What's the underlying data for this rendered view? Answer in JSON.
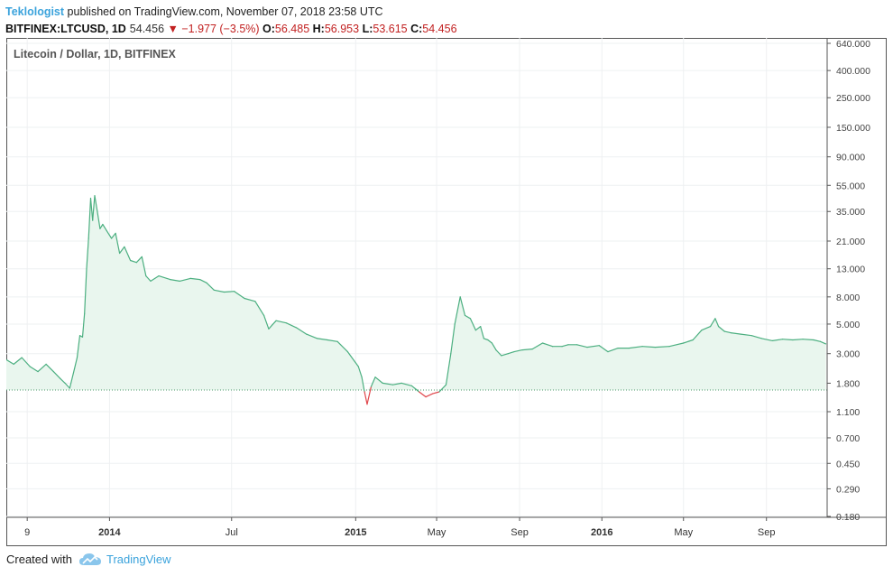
{
  "header": {
    "author": "Teklologist",
    "published_text": " published on TradingView.com, November 07, 2018 23:58 UTC",
    "symbol": "BITFINEX:LTCUSD, 1D",
    "last": "54.456",
    "change": "−1.977 (−3.5%)",
    "o_label": "O:",
    "o_value": "56.485",
    "h_label": "H:",
    "h_value": "56.953",
    "l_label": "L:",
    "l_value": "53.615",
    "c_label": "C:",
    "c_value": "54.456"
  },
  "footer": {
    "created_with": "Created with",
    "brand": "TradingView",
    "logo_icon": "tradingview-cloud-icon"
  },
  "colors": {
    "line_up": "#4caf80",
    "line_down": "#e0464b",
    "fill": "#e9f6ee",
    "grid": "#eef0f2",
    "axis_text": "#444444",
    "baseline": "#4a9a6a"
  },
  "chart_data": {
    "type": "area",
    "title": "Litecoin / Dollar, 1D, BITFINEX",
    "y_scale": "log",
    "ylim": [
      0.18,
      640
    ],
    "y_ticks": [
      "640.000",
      "400.000",
      "250.000",
      "150.000",
      "90.000",
      "55.000",
      "35.000",
      "21.000",
      "13.000",
      "8.000",
      "5.000",
      "3.000",
      "1.800",
      "1.100",
      "0.700",
      "0.450",
      "0.290",
      "0.180"
    ],
    "x_range": [
      "2013-08-01",
      "2016-11-30"
    ],
    "x_ticks": [
      {
        "date": "2013-09-01",
        "label": "9"
      },
      {
        "date": "2014-01-01",
        "label": "2014"
      },
      {
        "date": "2014-07-01",
        "label": "Jul"
      },
      {
        "date": "2015-01-01",
        "label": "2015"
      },
      {
        "date": "2015-05-01",
        "label": "May"
      },
      {
        "date": "2015-09-01",
        "label": "Sep"
      },
      {
        "date": "2016-01-01",
        "label": "2016"
      },
      {
        "date": "2016-05-01",
        "label": "May"
      },
      {
        "date": "2016-09-01",
        "label": "Sep"
      }
    ],
    "bold_x_labels": [
      "2014",
      "2015",
      "2016"
    ],
    "baseline_value": 1.6,
    "x": [
      "2013-08-01",
      "2013-08-12",
      "2013-08-24",
      "2013-09-05",
      "2013-09-17",
      "2013-09-29",
      "2013-10-10",
      "2013-10-20",
      "2013-10-27",
      "2013-11-03",
      "2013-11-10",
      "2013-11-14",
      "2013-11-18",
      "2013-11-22",
      "2013-11-25",
      "2013-11-28",
      "2013-12-01",
      "2013-12-04",
      "2013-12-07",
      "2013-12-10",
      "2013-12-14",
      "2013-12-18",
      "2013-12-22",
      "2013-12-28",
      "2014-01-04",
      "2014-01-10",
      "2014-01-16",
      "2014-01-23",
      "2014-02-01",
      "2014-02-10",
      "2014-02-18",
      "2014-02-24",
      "2014-03-03",
      "2014-03-15",
      "2014-04-01",
      "2014-04-15",
      "2014-05-01",
      "2014-05-15",
      "2014-05-25",
      "2014-06-05",
      "2014-06-20",
      "2014-07-05",
      "2014-07-20",
      "2014-08-05",
      "2014-08-18",
      "2014-08-25",
      "2014-09-05",
      "2014-09-20",
      "2014-10-05",
      "2014-10-20",
      "2014-11-05",
      "2014-11-20",
      "2014-12-05",
      "2014-12-20",
      "2015-01-05",
      "2015-01-10",
      "2015-01-14",
      "2015-01-18",
      "2015-01-24",
      "2015-01-30",
      "2015-02-10",
      "2015-02-25",
      "2015-03-10",
      "2015-03-25",
      "2015-04-05",
      "2015-04-15",
      "2015-04-25",
      "2015-05-05",
      "2015-05-15",
      "2015-05-22",
      "2015-05-28",
      "2015-06-05",
      "2015-06-12",
      "2015-06-20",
      "2015-06-28",
      "2015-07-05",
      "2015-07-10",
      "2015-07-16",
      "2015-07-22",
      "2015-07-28",
      "2015-08-05",
      "2015-08-15",
      "2015-08-24",
      "2015-09-05",
      "2015-09-20",
      "2015-10-05",
      "2015-10-20",
      "2015-11-03",
      "2015-11-12",
      "2015-11-25",
      "2015-12-10",
      "2015-12-28",
      "2016-01-10",
      "2016-01-25",
      "2016-02-10",
      "2016-03-01",
      "2016-03-20",
      "2016-04-10",
      "2016-05-01",
      "2016-05-15",
      "2016-05-28",
      "2016-06-10",
      "2016-06-17",
      "2016-06-22",
      "2016-07-01",
      "2016-07-10",
      "2016-07-25",
      "2016-08-10",
      "2016-08-25",
      "2016-09-10",
      "2016-09-25",
      "2016-10-10",
      "2016-10-25",
      "2016-11-10",
      "2016-11-20",
      "2016-11-28"
    ],
    "values": [
      2.7,
      2.5,
      2.8,
      2.4,
      2.2,
      2.5,
      2.2,
      1.95,
      1.8,
      1.65,
      2.3,
      2.8,
      4.1,
      4.0,
      6.0,
      13,
      22,
      44,
      30,
      46,
      35,
      26,
      28,
      25,
      22,
      24,
      17,
      19,
      15,
      14.5,
      16,
      11.5,
      10.5,
      11.5,
      10.8,
      10.5,
      11,
      10.8,
      10.2,
      9.0,
      8.7,
      8.8,
      7.8,
      7.4,
      5.8,
      4.6,
      5.3,
      5.1,
      4.7,
      4.2,
      3.9,
      3.8,
      3.7,
      3.1,
      2.4,
      2.0,
      1.55,
      1.25,
      1.7,
      2.0,
      1.8,
      1.75,
      1.8,
      1.72,
      1.55,
      1.42,
      1.5,
      1.55,
      1.75,
      3.0,
      5.0,
      8.0,
      5.8,
      5.5,
      4.5,
      4.8,
      3.9,
      3.8,
      3.6,
      3.2,
      2.9,
      3.0,
      3.1,
      3.2,
      3.25,
      3.6,
      3.4,
      3.4,
      3.5,
      3.5,
      3.35,
      3.45,
      3.1,
      3.3,
      3.3,
      3.4,
      3.35,
      3.4,
      3.6,
      3.8,
      4.5,
      4.8,
      5.5,
      4.8,
      4.4,
      4.3,
      4.2,
      4.1,
      3.9,
      3.75,
      3.85,
      3.8,
      3.85,
      3.8,
      3.7,
      3.55
    ]
  }
}
